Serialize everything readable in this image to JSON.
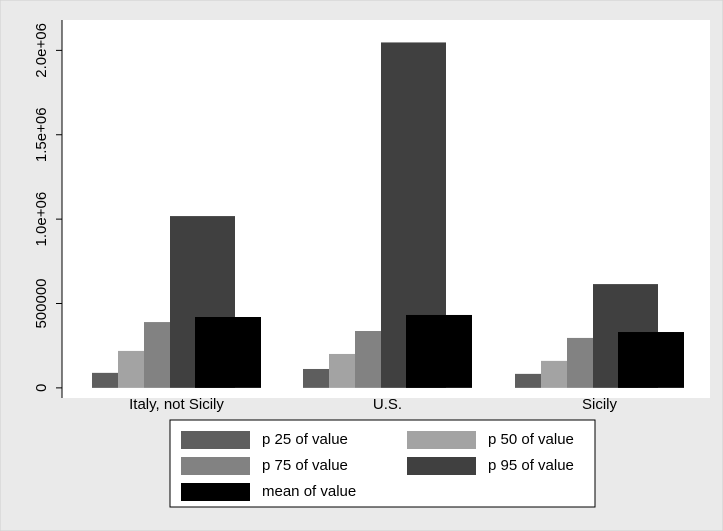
{
  "chart_data": {
    "type": "bar",
    "categories": [
      "Italy, not Sicily",
      "U.S.",
      "Sicily"
    ],
    "series": [
      {
        "name": "p 25 of value",
        "color": "#5e5e5e",
        "values": [
          89000,
          112000,
          83000
        ]
      },
      {
        "name": "p 50 of value",
        "color": "#a3a3a3",
        "values": [
          219000,
          201000,
          160000
        ]
      },
      {
        "name": "p 75 of value",
        "color": "#828282",
        "values": [
          390000,
          337000,
          296000
        ]
      },
      {
        "name": "p 95 of value",
        "color": "#404040",
        "values": [
          1018000,
          2047000,
          615000
        ]
      },
      {
        "name": "mean of value",
        "color": "#000000",
        "values": [
          420000,
          432000,
          331000
        ]
      }
    ],
    "ylim": [
      -60000,
      2180000
    ],
    "yticks": [
      0,
      500000,
      {
        "value": 1000000,
        "label": "1.0e+06"
      },
      {
        "value": 1500000,
        "label": "1.5e+06"
      },
      {
        "value": 2000000,
        "label": "2.0e+06"
      }
    ]
  }
}
